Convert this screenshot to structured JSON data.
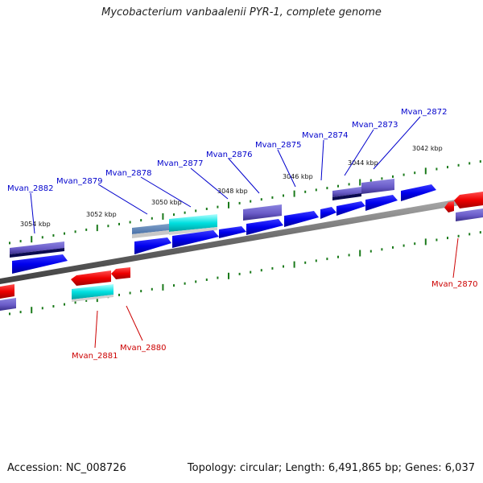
{
  "title": "Mycobacterium vanbaalenii PYR-1, complete genome",
  "footer": {
    "accession": "Accession: NC_008726",
    "summary": "Topology: circular; Length: 6,491,865 bp; Genes: 6,037"
  },
  "colors": {
    "forward_label": "#0000cc",
    "reverse_label": "#cc0000",
    "backbone": "#7a7a7a",
    "ticks": "#1a7a1a"
  },
  "kbp_labels": [
    "3054 kbp",
    "3052 kbp",
    "3050 kbp",
    "3048 kbp",
    "3046 kbp",
    "3044 kbp",
    "3042 kbp"
  ],
  "forward_genes": [
    "Mvan_2882",
    "Mvan_2879",
    "Mvan_2878",
    "Mvan_2877",
    "Mvan_2876",
    "Mvan_2875",
    "Mvan_2874",
    "Mvan_2873",
    "Mvan_2872"
  ],
  "reverse_genes": [
    "Mvan_2881",
    "Mvan_2880",
    "Mvan_2870"
  ]
}
